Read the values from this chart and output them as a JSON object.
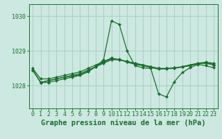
{
  "background_color": "#cce8e0",
  "grid_color": "#aacfc8",
  "line_color": "#1a6e2e",
  "xlabel": "Graphe pression niveau de la mer (hPa)",
  "xlabel_fontsize": 7.5,
  "ylabel_values": [
    1028,
    1029,
    1030
  ],
  "xlim": [
    -0.5,
    23.5
  ],
  "ylim": [
    1027.35,
    1030.35
  ],
  "series": [
    [
      1028.45,
      1028.1,
      1028.15,
      1028.2,
      1028.25,
      1028.28,
      1028.32,
      1028.42,
      1028.55,
      1028.68,
      1028.78,
      1028.76,
      1028.68,
      1028.62,
      1028.58,
      1028.53,
      1028.48,
      1028.49,
      1028.51,
      1028.54,
      1028.58,
      1028.63,
      1028.66,
      1028.62
    ],
    [
      1028.5,
      1028.2,
      1028.2,
      1028.25,
      1028.3,
      1028.35,
      1028.4,
      1028.5,
      1028.6,
      1028.7,
      1028.8,
      1028.75,
      1028.7,
      1028.65,
      1028.6,
      1028.55,
      1028.5,
      1028.5,
      1028.52,
      1028.55,
      1028.6,
      1028.65,
      1028.68,
      1028.65
    ],
    [
      1028.45,
      1028.1,
      1028.15,
      1028.2,
      1028.25,
      1028.3,
      1028.35,
      1028.45,
      1028.55,
      1028.65,
      1028.75,
      1028.75,
      1028.7,
      1028.65,
      1028.6,
      1028.55,
      1028.5,
      1028.5,
      1028.5,
      1028.55,
      1028.6,
      1028.65,
      1028.65,
      1028.6
    ],
    [
      1028.45,
      1028.1,
      1028.1,
      1028.15,
      1028.2,
      1028.25,
      1028.3,
      1028.4,
      1028.55,
      1028.75,
      1029.87,
      1029.77,
      1029.0,
      1028.58,
      1028.52,
      1028.5,
      1027.77,
      1027.68,
      1028.12,
      1028.38,
      1028.52,
      1028.62,
      1028.58,
      1028.52
    ]
  ],
  "marker": "D",
  "markersize": 2.2,
  "linewidth": 0.9,
  "tick_fontsize": 6,
  "xtick_labels": [
    "0",
    "1",
    "2",
    "3",
    "4",
    "5",
    "6",
    "7",
    "8",
    "9",
    "10",
    "11",
    "12",
    "13",
    "14",
    "15",
    "16",
    "17",
    "18",
    "19",
    "20",
    "21",
    "22",
    "23"
  ]
}
